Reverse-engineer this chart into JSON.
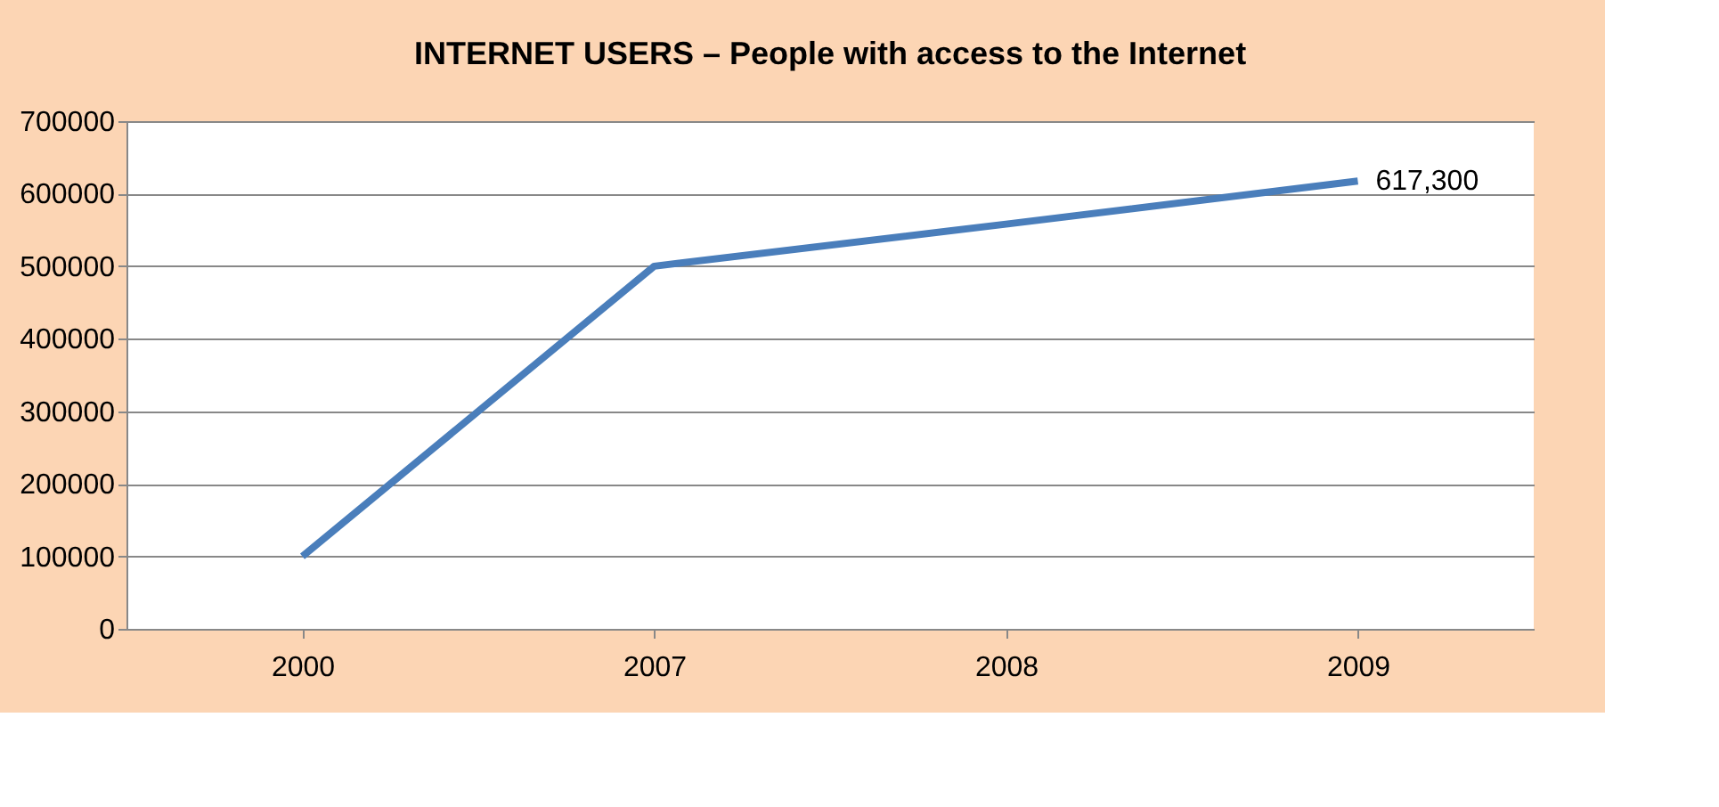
{
  "chart_data": {
    "type": "line",
    "title": "INTERNET USERS – People with access to the Internet",
    "categories": [
      "2000",
      "2007",
      "2008",
      "2009"
    ],
    "series": [
      {
        "color": "#4a7ebb",
        "values": [
          100000,
          500000,
          558000,
          617300
        ],
        "value_labels": [
          null,
          null,
          null,
          "617,300"
        ]
      }
    ],
    "ylim": [
      0,
      700000
    ],
    "yticks": [
      0,
      100000,
      200000,
      300000,
      400000,
      500000,
      600000,
      700000
    ],
    "grid": "y",
    "marker": "none",
    "line_style": "solid"
  }
}
